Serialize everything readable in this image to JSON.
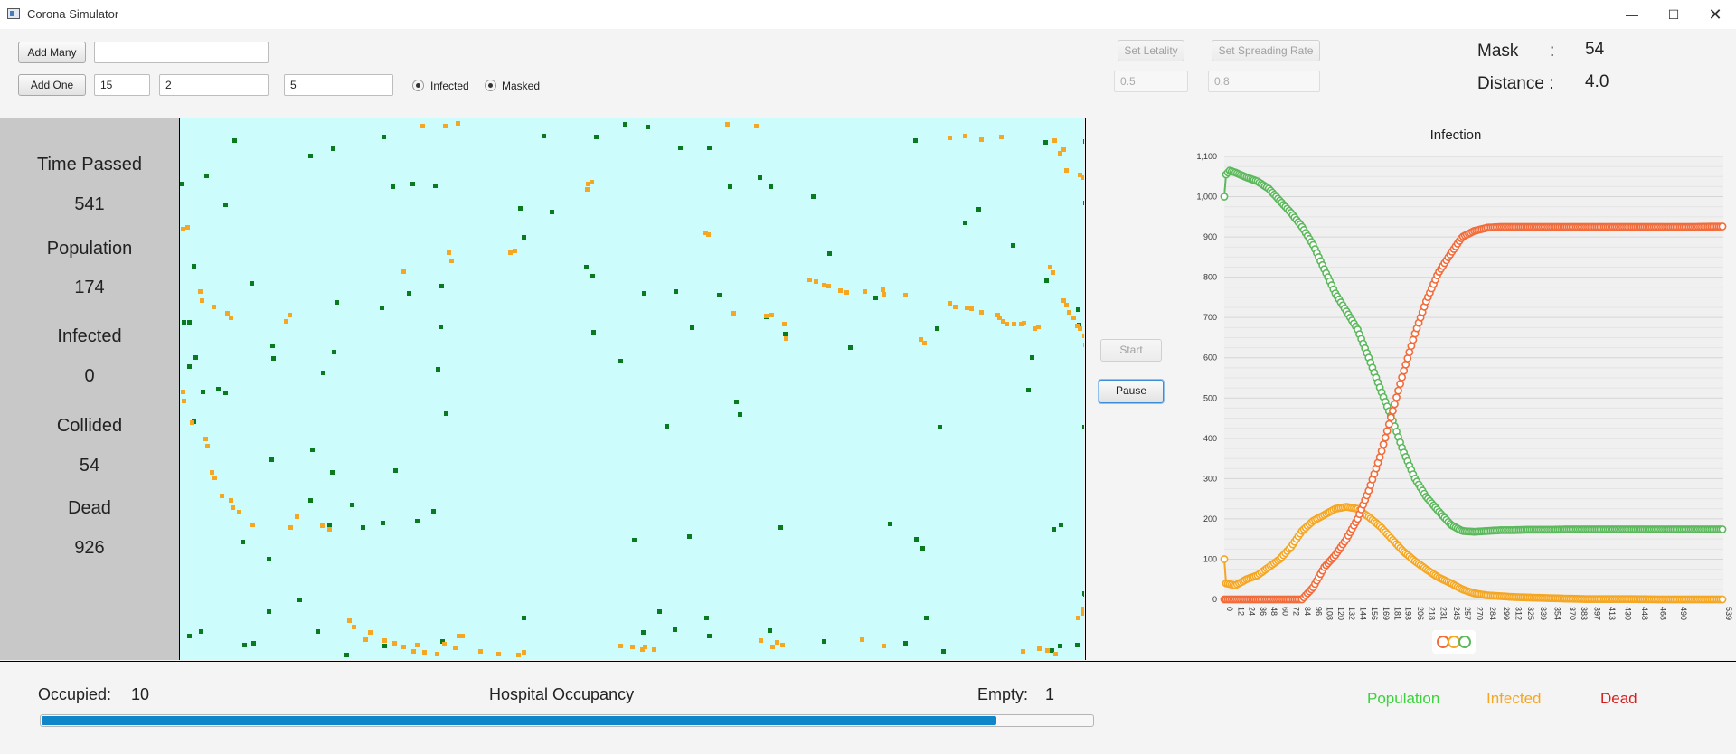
{
  "window": {
    "title": "Corona Simulator"
  },
  "toolbar": {
    "add_many_label": "Add Many",
    "add_many_value": "",
    "add_one_label": "Add One",
    "add_one_value_1": "15",
    "add_one_value_2": "2",
    "add_one_value_3": "5",
    "infected_label": "Infected",
    "masked_label": "Masked",
    "set_lethality_label": "Set Letality",
    "lethality_value": "0.5",
    "set_spreading_label": "Set Spreading Rate",
    "spreading_value": "0.8",
    "mask_label": "Mask",
    "mask_colon": ":",
    "mask_value": "54",
    "distance_label": "Distance :",
    "distance_value": "4.0"
  },
  "stats": [
    {
      "label": "Time Passed",
      "value": "541"
    },
    {
      "label": "Population",
      "value": "174"
    },
    {
      "label": "Infected",
      "value": "0"
    },
    {
      "label": "Collided",
      "value": "54"
    },
    {
      "label": "Dead",
      "value": "926"
    }
  ],
  "controls": {
    "start_label": "Start",
    "pause_label": "Pause"
  },
  "colors": {
    "healthy": "#0a7a1e",
    "infected": "#f5a623",
    "field": "#ccfcfc",
    "pop_line": "#5cb85c",
    "inf_line": "#f5a623",
    "dead_line": "#f26b3a"
  },
  "hospital": {
    "occupied_label": "Occupied:",
    "occupied_value": "10",
    "title": "Hospital Occupancy",
    "empty_label": "Empty:",
    "empty_value": "1",
    "fill_fraction": 0.909
  },
  "legend": {
    "population": "Population",
    "infected": "Infected",
    "dead": "Dead"
  },
  "field_dots": {
    "healthy": [
      [
        58,
        22
      ],
      [
        27,
        61
      ],
      [
        142,
        39
      ],
      [
        167,
        31
      ],
      [
        0,
        70
      ],
      [
        48,
        93
      ],
      [
        255,
        70
      ],
      [
        280,
        72
      ],
      [
        223,
        18
      ],
      [
        233,
        73
      ],
      [
        400,
        17
      ],
      [
        458,
        18
      ],
      [
        490,
        4
      ],
      [
        515,
        7
      ],
      [
        551,
        30
      ],
      [
        583,
        30
      ],
      [
        606,
        73
      ],
      [
        639,
        63
      ],
      [
        698,
        84
      ],
      [
        716,
        147
      ],
      [
        651,
        73
      ],
      [
        811,
        22
      ],
      [
        955,
        24
      ],
      [
        999,
        23
      ],
      [
        1000,
        55
      ],
      [
        999,
        91
      ],
      [
        2,
        223
      ],
      [
        13,
        161
      ],
      [
        77,
        180
      ],
      [
        100,
        249
      ],
      [
        101,
        263
      ],
      [
        156,
        279
      ],
      [
        168,
        256
      ],
      [
        171,
        201
      ],
      [
        221,
        207
      ],
      [
        251,
        191
      ],
      [
        287,
        183
      ],
      [
        286,
        228
      ],
      [
        283,
        275
      ],
      [
        292,
        324
      ],
      [
        374,
        97
      ],
      [
        378,
        129
      ],
      [
        409,
        101
      ],
      [
        447,
        162
      ],
      [
        454,
        172
      ],
      [
        455,
        234
      ],
      [
        546,
        189
      ],
      [
        511,
        191
      ],
      [
        485,
        266
      ],
      [
        536,
        338
      ],
      [
        564,
        229
      ],
      [
        594,
        193
      ],
      [
        613,
        311
      ],
      [
        617,
        325
      ],
      [
        646,
        217
      ],
      [
        667,
        236
      ],
      [
        739,
        251
      ],
      [
        767,
        196
      ],
      [
        835,
        230
      ],
      [
        838,
        339
      ],
      [
        919,
        138
      ],
      [
        866,
        113
      ],
      [
        881,
        98
      ],
      [
        956,
        177
      ],
      [
        940,
        262
      ],
      [
        936,
        298
      ],
      [
        991,
        209
      ],
      [
        992,
        226
      ],
      [
        998,
        339
      ],
      [
        1000,
        379
      ],
      [
        8,
        223
      ],
      [
        15,
        262
      ],
      [
        8,
        272
      ],
      [
        40,
        297
      ],
      [
        23,
        300
      ],
      [
        13,
        333
      ],
      [
        99,
        375
      ],
      [
        48,
        301
      ],
      [
        166,
        389
      ],
      [
        144,
        364
      ],
      [
        278,
        432
      ],
      [
        236,
        387
      ],
      [
        188,
        425
      ],
      [
        163,
        447
      ],
      [
        200,
        450
      ],
      [
        67,
        466
      ],
      [
        96,
        485
      ],
      [
        142,
        420
      ],
      [
        222,
        445
      ],
      [
        260,
        443
      ],
      [
        500,
        464
      ],
      [
        561,
        460
      ],
      [
        662,
        450
      ],
      [
        783,
        446
      ],
      [
        812,
        463
      ],
      [
        819,
        473
      ],
      [
        964,
        452
      ],
      [
        972,
        447
      ],
      [
        998,
        523
      ],
      [
        999,
        524
      ],
      [
        8,
        570
      ],
      [
        21,
        565
      ],
      [
        69,
        580
      ],
      [
        182,
        591
      ],
      [
        150,
        565
      ],
      [
        79,
        578
      ],
      [
        130,
        530
      ],
      [
        96,
        543
      ],
      [
        224,
        581
      ],
      [
        288,
        576
      ],
      [
        378,
        550
      ],
      [
        510,
        566
      ],
      [
        528,
        543
      ],
      [
        545,
        563
      ],
      [
        583,
        570
      ],
      [
        580,
        550
      ],
      [
        650,
        564
      ],
      [
        710,
        576
      ],
      [
        800,
        578
      ],
      [
        823,
        550
      ],
      [
        842,
        587
      ],
      [
        990,
        580
      ],
      [
        1000,
        570
      ],
      [
        962,
        586
      ],
      [
        971,
        581
      ]
    ],
    "infected": [
      [
        266,
        6
      ],
      [
        305,
        3
      ],
      [
        291,
        6
      ],
      [
        603,
        4
      ],
      [
        635,
        6
      ],
      [
        849,
        19
      ],
      [
        866,
        17
      ],
      [
        884,
        21
      ],
      [
        906,
        18
      ],
      [
        965,
        22
      ],
      [
        971,
        36
      ],
      [
        975,
        32
      ],
      [
        978,
        55
      ],
      [
        993,
        60
      ],
      [
        997,
        63
      ],
      [
        1,
        120
      ],
      [
        6,
        118
      ],
      [
        20,
        189
      ],
      [
        22,
        199
      ],
      [
        35,
        206
      ],
      [
        50,
        213
      ],
      [
        54,
        218
      ],
      [
        115,
        222
      ],
      [
        119,
        215
      ],
      [
        245,
        167
      ],
      [
        295,
        146
      ],
      [
        298,
        155
      ],
      [
        363,
        146
      ],
      [
        368,
        144
      ],
      [
        449,
        70
      ],
      [
        448,
        76
      ],
      [
        453,
        68
      ],
      [
        579,
        124
      ],
      [
        582,
        126
      ],
      [
        610,
        213
      ],
      [
        646,
        216
      ],
      [
        652,
        215
      ],
      [
        666,
        225
      ],
      [
        668,
        241
      ],
      [
        694,
        176
      ],
      [
        701,
        178
      ],
      [
        710,
        182
      ],
      [
        715,
        183
      ],
      [
        728,
        188
      ],
      [
        735,
        190
      ],
      [
        755,
        189
      ],
      [
        775,
        187
      ],
      [
        776,
        192
      ],
      [
        800,
        193
      ],
      [
        817,
        242
      ],
      [
        821,
        246
      ],
      [
        849,
        202
      ],
      [
        855,
        206
      ],
      [
        868,
        207
      ],
      [
        873,
        208
      ],
      [
        884,
        212
      ],
      [
        902,
        215
      ],
      [
        904,
        218
      ],
      [
        908,
        222
      ],
      [
        912,
        225
      ],
      [
        920,
        225
      ],
      [
        928,
        225
      ],
      [
        931,
        224
      ],
      [
        943,
        230
      ],
      [
        947,
        228
      ],
      [
        960,
        162
      ],
      [
        963,
        168
      ],
      [
        975,
        199
      ],
      [
        978,
        204
      ],
      [
        981,
        212
      ],
      [
        986,
        218
      ],
      [
        990,
        227
      ],
      [
        993,
        230
      ],
      [
        998,
        238
      ],
      [
        999,
        248
      ],
      [
        997,
        540
      ],
      [
        997,
        545
      ],
      [
        991,
        550
      ],
      [
        1,
        300
      ],
      [
        2,
        310
      ],
      [
        11,
        334
      ],
      [
        26,
        352
      ],
      [
        28,
        360
      ],
      [
        33,
        389
      ],
      [
        36,
        395
      ],
      [
        44,
        415
      ],
      [
        54,
        420
      ],
      [
        56,
        428
      ],
      [
        63,
        433
      ],
      [
        78,
        447
      ],
      [
        120,
        450
      ],
      [
        127,
        438
      ],
      [
        155,
        448
      ],
      [
        163,
        452
      ],
      [
        185,
        553
      ],
      [
        190,
        560
      ],
      [
        203,
        574
      ],
      [
        208,
        566
      ],
      [
        224,
        575
      ],
      [
        235,
        578
      ],
      [
        245,
        582
      ],
      [
        256,
        587
      ],
      [
        260,
        580
      ],
      [
        268,
        588
      ],
      [
        282,
        590
      ],
      [
        290,
        579
      ],
      [
        302,
        583
      ],
      [
        306,
        570
      ],
      [
        310,
        570
      ],
      [
        330,
        587
      ],
      [
        350,
        590
      ],
      [
        372,
        591
      ],
      [
        378,
        588
      ],
      [
        485,
        581
      ],
      [
        498,
        582
      ],
      [
        509,
        585
      ],
      [
        512,
        582
      ],
      [
        522,
        585
      ],
      [
        640,
        575
      ],
      [
        653,
        582
      ],
      [
        658,
        577
      ],
      [
        664,
        580
      ],
      [
        752,
        574
      ],
      [
        776,
        581
      ],
      [
        930,
        587
      ],
      [
        948,
        584
      ],
      [
        957,
        586
      ],
      [
        966,
        590
      ]
    ]
  },
  "chart_data": {
    "type": "line",
    "title": "Infection",
    "x": [
      0,
      12,
      24,
      36,
      48,
      60,
      72,
      84,
      96,
      108,
      120,
      132,
      144,
      156,
      169,
      181,
      193,
      206,
      218,
      231,
      245,
      257,
      270,
      284,
      299,
      312,
      325,
      339,
      354,
      370,
      383,
      397,
      413,
      430,
      448,
      468,
      490,
      539
    ],
    "x_tick_labels": [
      "0",
      "12",
      "24",
      "36",
      "48",
      "60",
      "72",
      "84",
      "96",
      "108",
      "120",
      "132",
      "144",
      "156",
      "169",
      "181",
      "193",
      "206",
      "218",
      "231",
      "245",
      "257",
      "270",
      "284",
      "299",
      "312",
      "325",
      "339",
      "354",
      "370",
      "383",
      "397",
      "413",
      "430",
      "448",
      "468",
      "490",
      "539"
    ],
    "ylim": [
      0,
      1100
    ],
    "y_ticks": [
      "0",
      "100",
      "200",
      "300",
      "400",
      "500",
      "600",
      "700",
      "800",
      "900",
      "1,000",
      "1,100"
    ],
    "series": [
      {
        "name": "Population",
        "color": "#5cb85c",
        "points": [
          [
            0,
            1000
          ],
          [
            2,
            1055
          ],
          [
            6,
            1065
          ],
          [
            12,
            1060
          ],
          [
            24,
            1048
          ],
          [
            36,
            1038
          ],
          [
            48,
            1020
          ],
          [
            60,
            990
          ],
          [
            72,
            960
          ],
          [
            84,
            925
          ],
          [
            96,
            880
          ],
          [
            108,
            820
          ],
          [
            120,
            760
          ],
          [
            132,
            715
          ],
          [
            144,
            670
          ],
          [
            156,
            600
          ],
          [
            169,
            520
          ],
          [
            181,
            450
          ],
          [
            193,
            370
          ],
          [
            206,
            300
          ],
          [
            218,
            255
          ],
          [
            231,
            220
          ],
          [
            245,
            185
          ],
          [
            257,
            170
          ],
          [
            270,
            168
          ],
          [
            284,
            170
          ],
          [
            299,
            172
          ],
          [
            312,
            172
          ],
          [
            325,
            173
          ],
          [
            339,
            173
          ],
          [
            354,
            173
          ],
          [
            370,
            174
          ],
          [
            390,
            174
          ],
          [
            430,
            174
          ],
          [
            470,
            174
          ],
          [
            510,
            174
          ],
          [
            539,
            174
          ]
        ]
      },
      {
        "name": "Infected",
        "color": "#f5a623",
        "points": [
          [
            0,
            100
          ],
          [
            2,
            40
          ],
          [
            12,
            35
          ],
          [
            24,
            50
          ],
          [
            36,
            60
          ],
          [
            48,
            80
          ],
          [
            60,
            100
          ],
          [
            72,
            130
          ],
          [
            84,
            170
          ],
          [
            96,
            195
          ],
          [
            108,
            210
          ],
          [
            120,
            225
          ],
          [
            132,
            230
          ],
          [
            144,
            225
          ],
          [
            156,
            205
          ],
          [
            169,
            180
          ],
          [
            181,
            150
          ],
          [
            193,
            120
          ],
          [
            206,
            95
          ],
          [
            218,
            75
          ],
          [
            231,
            55
          ],
          [
            245,
            40
          ],
          [
            257,
            25
          ],
          [
            270,
            15
          ],
          [
            284,
            10
          ],
          [
            299,
            8
          ],
          [
            312,
            6
          ],
          [
            325,
            5
          ],
          [
            339,
            4
          ],
          [
            354,
            3
          ],
          [
            370,
            2
          ],
          [
            390,
            1
          ],
          [
            430,
            1
          ],
          [
            470,
            0
          ],
          [
            510,
            0
          ],
          [
            539,
            0
          ]
        ]
      },
      {
        "name": "Dead",
        "color": "#f26b3a",
        "points": [
          [
            0,
            0
          ],
          [
            12,
            0
          ],
          [
            24,
            0
          ],
          [
            36,
            0
          ],
          [
            48,
            0
          ],
          [
            60,
            0
          ],
          [
            72,
            0
          ],
          [
            84,
            0
          ],
          [
            96,
            30
          ],
          [
            108,
            80
          ],
          [
            120,
            110
          ],
          [
            132,
            150
          ],
          [
            144,
            200
          ],
          [
            156,
            270
          ],
          [
            169,
            360
          ],
          [
            181,
            460
          ],
          [
            193,
            560
          ],
          [
            206,
            660
          ],
          [
            218,
            740
          ],
          [
            231,
            810
          ],
          [
            245,
            860
          ],
          [
            257,
            900
          ],
          [
            270,
            915
          ],
          [
            284,
            923
          ],
          [
            299,
            925
          ],
          [
            312,
            925
          ],
          [
            325,
            925
          ],
          [
            339,
            925
          ],
          [
            354,
            925
          ],
          [
            370,
            925
          ],
          [
            390,
            925
          ],
          [
            430,
            925
          ],
          [
            470,
            925
          ],
          [
            510,
            925
          ],
          [
            539,
            926
          ]
        ]
      }
    ]
  }
}
